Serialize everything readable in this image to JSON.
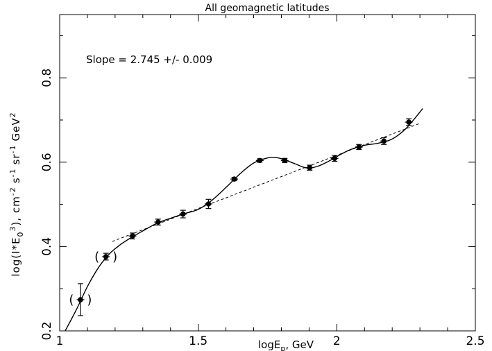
{
  "chart_data": {
    "type": "scatter",
    "title": "All geomagnetic latitudes",
    "xlabel": {
      "prefix": "logE",
      "sub": "p",
      "suffix": ", GeV"
    },
    "ylabel": {
      "a": "log(I*E",
      "a_sub": "0",
      "a_sup": "3",
      "b": "), cm",
      "b_sup": "-2",
      "c": "s",
      "c_sup": "-1",
      "d": "sr",
      "d_sup": "-1",
      "e": "GeV",
      "e_sup": "2"
    },
    "annotation": "Slope = 2.745 +/- 0.009",
    "xlim": [
      1.0,
      2.5
    ],
    "ylim": [
      0.2,
      0.95
    ],
    "xticks": [
      1.0,
      1.5,
      2.0,
      2.5
    ],
    "xtick_labels": [
      "1",
      "1.5",
      "2",
      "2.5"
    ],
    "yticks": [
      0.2,
      0.4,
      0.6,
      0.8
    ],
    "ytick_labels": [
      "0.2",
      "0.4",
      "0.6",
      "0.8"
    ],
    "paren_marks": [
      "(",
      ")"
    ],
    "points": [
      {
        "x": 1.075,
        "y": 0.274,
        "err": 0.038,
        "bracketed": true
      },
      {
        "x": 1.167,
        "y": 0.376,
        "err": 0.008,
        "bracketed": true
      },
      {
        "x": 1.263,
        "y": 0.425,
        "err": 0.007,
        "bracketed": false
      },
      {
        "x": 1.355,
        "y": 0.458,
        "err": 0.007,
        "bracketed": false
      },
      {
        "x": 1.445,
        "y": 0.477,
        "err": 0.009,
        "bracketed": false
      },
      {
        "x": 1.537,
        "y": 0.501,
        "err": 0.011,
        "bracketed": false
      },
      {
        "x": 1.63,
        "y": 0.56,
        "err": 0.004,
        "bracketed": false
      },
      {
        "x": 1.722,
        "y": 0.604,
        "err": 0.004,
        "bracketed": false
      },
      {
        "x": 1.812,
        "y": 0.604,
        "err": 0.005,
        "bracketed": false
      },
      {
        "x": 1.902,
        "y": 0.587,
        "err": 0.006,
        "bracketed": false
      },
      {
        "x": 1.992,
        "y": 0.609,
        "err": 0.007,
        "bracketed": false
      },
      {
        "x": 2.08,
        "y": 0.636,
        "err": 0.006,
        "bracketed": false
      },
      {
        "x": 2.17,
        "y": 0.65,
        "err": 0.008,
        "bracketed": false
      },
      {
        "x": 2.26,
        "y": 0.695,
        "err": 0.008,
        "bracketed": false
      }
    ],
    "fit_curve": [
      [
        1.02,
        0.2
      ],
      [
        1.06,
        0.25
      ],
      [
        1.1,
        0.305
      ],
      [
        1.14,
        0.35
      ],
      [
        1.18,
        0.383
      ],
      [
        1.22,
        0.405
      ],
      [
        1.26,
        0.422
      ],
      [
        1.3,
        0.437
      ],
      [
        1.35,
        0.455
      ],
      [
        1.4,
        0.467
      ],
      [
        1.45,
        0.478
      ],
      [
        1.5,
        0.488
      ],
      [
        1.55,
        0.51
      ],
      [
        1.6,
        0.54
      ],
      [
        1.65,
        0.572
      ],
      [
        1.7,
        0.598
      ],
      [
        1.75,
        0.61
      ],
      [
        1.78,
        0.611
      ],
      [
        1.81,
        0.606
      ],
      [
        1.85,
        0.596
      ],
      [
        1.88,
        0.588
      ],
      [
        1.9,
        0.586
      ],
      [
        1.93,
        0.59
      ],
      [
        1.97,
        0.602
      ],
      [
        2.01,
        0.617
      ],
      [
        2.05,
        0.63
      ],
      [
        2.1,
        0.64
      ],
      [
        2.15,
        0.645
      ],
      [
        2.2,
        0.655
      ],
      [
        2.25,
        0.68
      ],
      [
        2.31,
        0.727
      ]
    ],
    "power_law_fit": {
      "x": [
        1.19,
        2.3
      ],
      "y": [
        0.412,
        0.692
      ]
    }
  }
}
